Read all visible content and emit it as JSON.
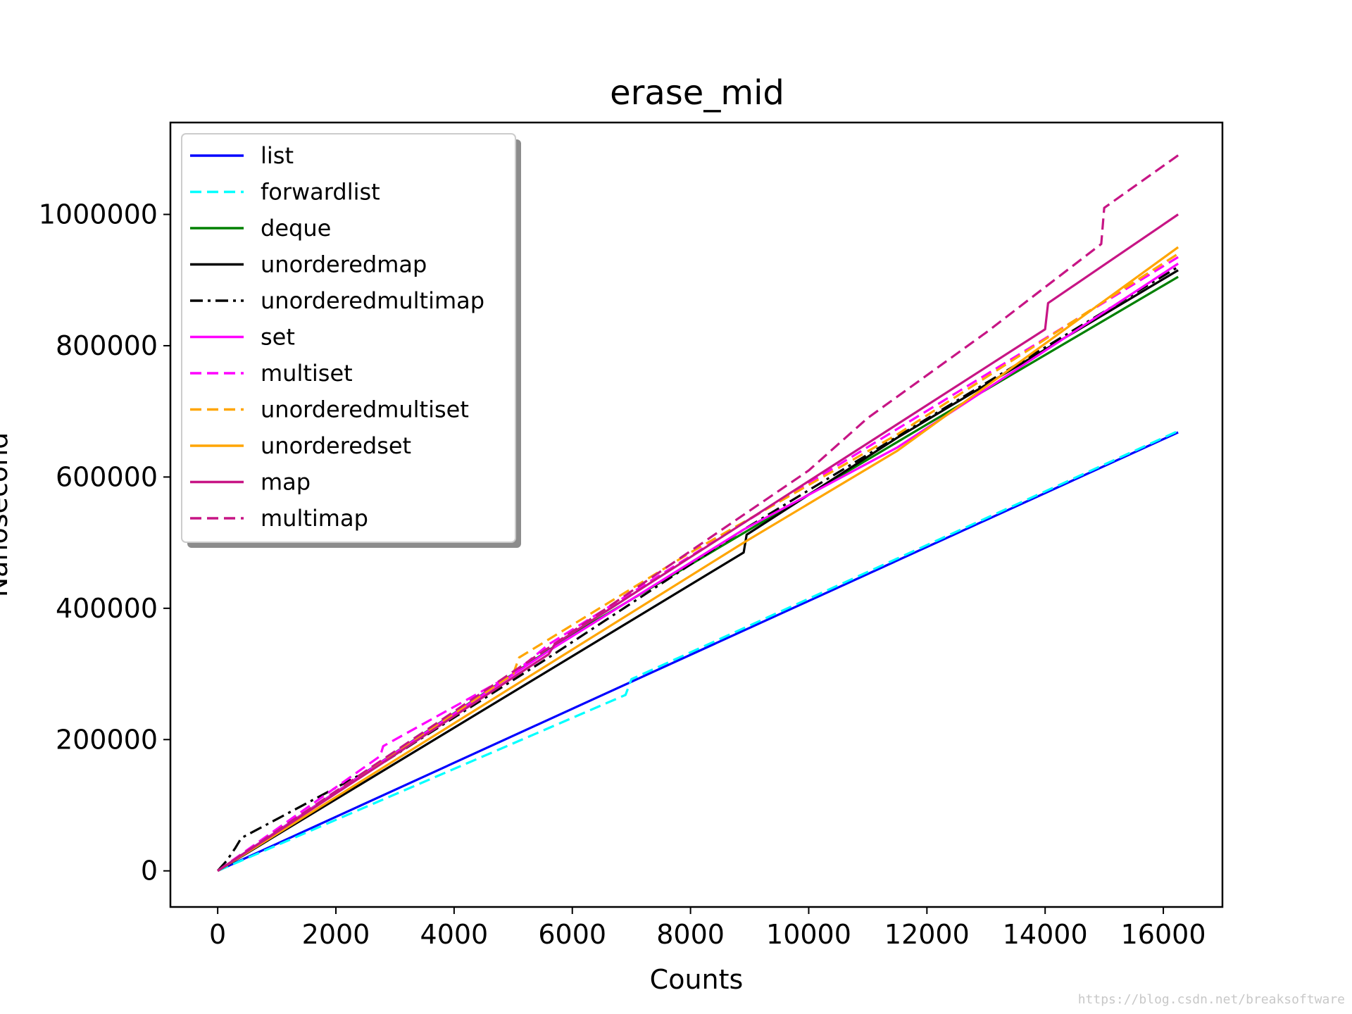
{
  "chart_data": {
    "type": "line",
    "title": "erase_mid",
    "xlabel": "Counts",
    "ylabel": "Nanosecond",
    "xlim": [
      -800,
      17000
    ],
    "ylim": [
      -55000,
      1140000
    ],
    "xticks": [
      0,
      2000,
      4000,
      6000,
      8000,
      10000,
      12000,
      14000,
      16000
    ],
    "xtick_labels": [
      "0",
      "2000",
      "4000",
      "6000",
      "8000",
      "10000",
      "12000",
      "14000",
      "16000"
    ],
    "yticks": [
      0,
      200000,
      400000,
      600000,
      800000,
      1000000
    ],
    "ytick_labels": [
      "0",
      "200000",
      "400000",
      "600000",
      "800000",
      "1000000"
    ],
    "grid": false,
    "legend_position": "upper-left",
    "series": [
      {
        "name": "list",
        "color": "#0000ff",
        "dash": "solid",
        "x": [
          0,
          7000,
          16250
        ],
        "y": [
          0,
          288000,
          668000
        ]
      },
      {
        "name": "forwardlist",
        "color": "#00ffff",
        "dash": "dashed",
        "x": [
          0,
          6900,
          7000,
          16250
        ],
        "y": [
          0,
          268000,
          292000,
          670000
        ]
      },
      {
        "name": "deque",
        "color": "#008000",
        "dash": "solid",
        "x": [
          0,
          6000,
          12000,
          16250
        ],
        "y": [
          0,
          360000,
          680000,
          905000
        ]
      },
      {
        "name": "unorderedmap",
        "color": "#000000",
        "dash": "solid",
        "x": [
          0,
          8900,
          8950,
          11500,
          16250
        ],
        "y": [
          0,
          485000,
          512000,
          660000,
          915000
        ]
      },
      {
        "name": "unorderedmultimap",
        "color": "#000000",
        "dash": "dashdot",
        "x": [
          0,
          150,
          300,
          400,
          2800,
          5600,
          8900,
          16250
        ],
        "y": [
          0,
          15000,
          35000,
          50000,
          165000,
          325000,
          520000,
          920000
        ]
      },
      {
        "name": "set",
        "color": "#ff00ff",
        "dash": "solid",
        "x": [
          0,
          5600,
          8900,
          11500,
          16250
        ],
        "y": [
          0,
          335000,
          520000,
          645000,
          925000
        ]
      },
      {
        "name": "multiset",
        "color": "#ff00ff",
        "dash": "dashed",
        "x": [
          0,
          2750,
          2800,
          5000,
          5600,
          8900,
          16250
        ],
        "y": [
          0,
          175000,
          190000,
          300000,
          345000,
          530000,
          935000
        ]
      },
      {
        "name": "unorderedmultiset",
        "color": "#ffa500",
        "dash": "dashed",
        "x": [
          0,
          5000,
          5100,
          8000,
          11500,
          16250
        ],
        "y": [
          0,
          300000,
          325000,
          485000,
          665000,
          940000
        ]
      },
      {
        "name": "unorderedset",
        "color": "#ffa500",
        "dash": "solid",
        "x": [
          0,
          8900,
          11500,
          16250
        ],
        "y": [
          0,
          500000,
          640000,
          950000
        ]
      },
      {
        "name": "map",
        "color": "#c71585",
        "dash": "solid",
        "x": [
          0,
          5600,
          5700,
          14000,
          14050,
          16250
        ],
        "y": [
          0,
          330000,
          345000,
          825000,
          865000,
          1000000
        ]
      },
      {
        "name": "multimap",
        "color": "#c71585",
        "dash": "dashed",
        "x": [
          0,
          5600,
          10000,
          11000,
          13000,
          14950,
          15000,
          16250
        ],
        "y": [
          0,
          340000,
          610000,
          690000,
          820000,
          955000,
          1010000,
          1090000
        ]
      }
    ]
  },
  "watermark": "https://blog.csdn.net/breaksoftware"
}
